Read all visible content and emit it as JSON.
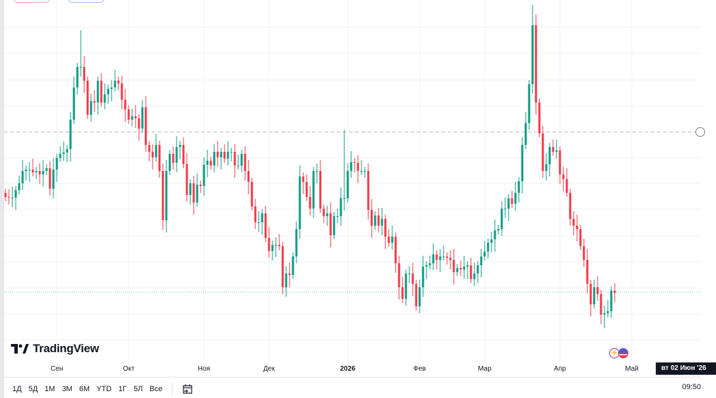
{
  "brand": {
    "name": "TradingView"
  },
  "colors": {
    "up": "#089981",
    "down": "#f23645",
    "grid": "#f0f3fa",
    "dashed_line": "#b2b5be",
    "dotted_line": "#089981"
  },
  "chart_data": {
    "type": "candlestick",
    "title": "",
    "x_ticks": [
      {
        "label": "Сен",
        "index": 15
      },
      {
        "label": "Окт",
        "index": 36
      },
      {
        "label": "Ноя",
        "index": 58
      },
      {
        "label": "Дек",
        "index": 77
      },
      {
        "label": "2026",
        "index": 100,
        "bold": true
      },
      {
        "label": "Фев",
        "index": 121
      },
      {
        "label": "Мар",
        "index": 140
      },
      {
        "label": "Апр",
        "index": 162
      },
      {
        "label": "Май",
        "index": 183
      }
    ],
    "ylim": [
      10,
      60
    ],
    "grid_levels": [
      56.0,
      52.2,
      48.3,
      44.5,
      40.7,
      36.9,
      33.2,
      29.4,
      25.5,
      21.7,
      17.9,
      14.1,
      10.3
    ],
    "dashed_price_line": 40.7,
    "dotted_price_line": 17.3,
    "start_open": 31.8,
    "closes": [
      31.2,
      31.1,
      31.1,
      32.2,
      33.2,
      35.0,
      35.2,
      35.2,
      34.8,
      35.0,
      34.5,
      35.0,
      35.4,
      32.4,
      35.2,
      36.9,
      37.5,
      37.7,
      38.2,
      42.5,
      47.2,
      50.2,
      50.2,
      48.2,
      43.2,
      45.2,
      45.0,
      48.2,
      45.0,
      46.2,
      47.0,
      47.2,
      48.2,
      47.8,
      45.4,
      44.0,
      42.5,
      43.0,
      42.7,
      41.2,
      44.3,
      38.8,
      37.8,
      37.0,
      38.8,
      35.0,
      27.8,
      35.0,
      37.5,
      36.2,
      38.5,
      38.8,
      36.0,
      31.5,
      33.2,
      30.4,
      33.0,
      32.8,
      35.9,
      36.5,
      35.8,
      37.8,
      37.0,
      37.8,
      36.8,
      37.8,
      37.8,
      35.8,
      35.8,
      37.5,
      35.0,
      33.4,
      29.8,
      27.5,
      27.5,
      28.8,
      25.2,
      23.3,
      24.2,
      24.2,
      24.0,
      18.0,
      20.0,
      19.8,
      22.5,
      26.5,
      34.2,
      33.4,
      31.2,
      29.5,
      35.0,
      35.0,
      29.5,
      28.4,
      28.8,
      25.6,
      28.4,
      28.4,
      31.0,
      31.0,
      35.0,
      36.3,
      36.2,
      35.0,
      35.0,
      35.0,
      29.3,
      27.0,
      28.5,
      27.0,
      28.0,
      25.4,
      24.5,
      25.4,
      21.5,
      18.0,
      16.3,
      20.0,
      20.0,
      18.5,
      15.2,
      18.0,
      21.0,
      21.2,
      21.5,
      22.8,
      22.0,
      22.5,
      22.5,
      22.3,
      22.0,
      20.2,
      20.8,
      20.6,
      21.0,
      21.2,
      19.2,
      20.0,
      21.2,
      22.5,
      23.2,
      24.5,
      25.0,
      26.3,
      26.5,
      29.5,
      29.5,
      31.0,
      30.2,
      31.8,
      33.5,
      38.8,
      42.0,
      47.7,
      56.3,
      45.0,
      40.5,
      35.0,
      36.0,
      38.5,
      37.8,
      38.0,
      34.5,
      33.8,
      31.8,
      28.0,
      27.0,
      26.5,
      24.0,
      22.0,
      18.5,
      15.5,
      18.0,
      17.0,
      14.0,
      14.2,
      14.5,
      17.5,
      17.2
    ],
    "wick_extremes": [
      {
        "index": 22,
        "high": 55.6
      },
      {
        "index": 99,
        "high": 41.0
      },
      {
        "index": 154,
        "high": 59.3
      },
      {
        "index": 175,
        "low": 12.0
      }
    ]
  },
  "crosshair_date_label": "вт 02 Июн '26",
  "toolbar": {
    "ranges": [
      "1Д",
      "5Д",
      "1М",
      "3М",
      "6М",
      "YTD",
      "1Г",
      "5Л",
      "Все"
    ],
    "time": "09:50"
  }
}
